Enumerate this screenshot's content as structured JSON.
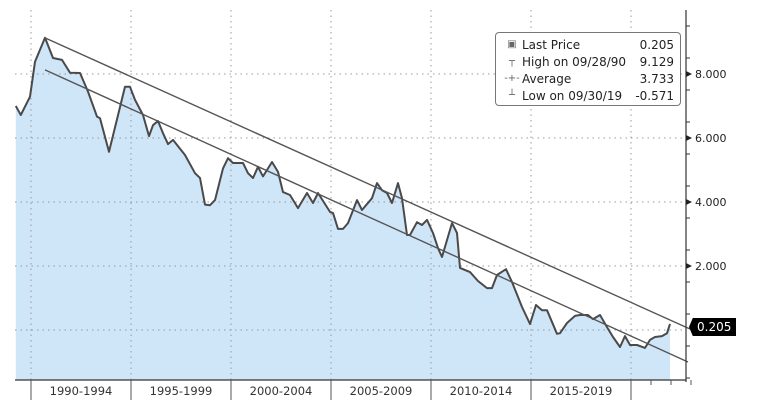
{
  "chart_data": {
    "type": "area",
    "title": "",
    "xlabel": "",
    "ylabel": "",
    "xlim": [
      1989.2,
      2023.0
    ],
    "ylim": [
      -1.56,
      10.0
    ],
    "grid": true,
    "x_tick_labels": [
      "1990-1994",
      "1995-1999",
      "2000-2004",
      "2005-2009",
      "2010-2014",
      "2015-2019"
    ],
    "x_tick_bounds": [
      1990,
      1995,
      2000,
      2005,
      2010,
      2015,
      2020
    ],
    "y_ticks": [
      2,
      4,
      6,
      8
    ],
    "y_tick_labels": [
      "2.000",
      "4.000",
      "6.000",
      "8.000"
    ],
    "legend_placement": "top-right",
    "legend": [
      {
        "name": "Last Price",
        "value": "0.205",
        "icon": "filled-square"
      },
      {
        "name": "High on 09/28/90",
        "value": "9.129",
        "icon": "high-marker"
      },
      {
        "name": "Average",
        "value": "3.733",
        "icon": "average-marker"
      },
      {
        "name": "Low on 09/30/19",
        "value": "-0.571",
        "icon": "low-marker"
      }
    ],
    "last_price_label": "0.205",
    "series": [
      {
        "name": "Last Price",
        "x": [
          1989.24,
          1989.49,
          1989.95,
          1990.2,
          1990.7,
          1991.1,
          1991.55,
          1991.95,
          1992.45,
          1992.85,
          1993.3,
          1993.45,
          1993.9,
          1994.7,
          1994.95,
          1995.2,
          1995.6,
          1995.9,
          1996.1,
          1996.35,
          1996.6,
          1996.85,
          1997.1,
          1997.7,
          1998.2,
          1998.45,
          1998.7,
          1998.95,
          1999.2,
          1999.6,
          1999.85,
          2000.1,
          2000.6,
          2000.85,
          2001.1,
          2001.35,
          2001.6,
          2002.05,
          2002.35,
          2002.6,
          2002.95,
          2003.35,
          2003.8,
          2004.1,
          2004.35,
          2004.95,
          2005.1,
          2005.35,
          2005.6,
          2005.85,
          2006.3,
          2006.55,
          2007.05,
          2007.3,
          2007.55,
          2007.8,
          2008.05,
          2008.35,
          2008.55,
          2008.8,
          2008.95,
          2009.3,
          2009.55,
          2009.8,
          2010.1,
          2010.35,
          2010.55,
          2011.05,
          2011.3,
          2011.45,
          2011.95,
          2012.35,
          2012.8,
          2013.05,
          2013.3,
          2013.75,
          2014.05,
          2014.55,
          2014.95,
          2015.25,
          2015.55,
          2015.8,
          2016.3,
          2016.45,
          2016.8,
          2017.2,
          2017.45,
          2017.85,
          2018.1,
          2018.45,
          2018.8,
          2019.1,
          2019.45,
          2019.7,
          2019.95,
          2020.3,
          2020.7,
          2020.95,
          2021.2,
          2021.55,
          2021.8,
          2021.95
        ],
        "y": [
          7.0,
          6.72,
          7.29,
          8.38,
          9.13,
          8.5,
          8.44,
          8.04,
          8.03,
          7.45,
          6.67,
          6.62,
          5.57,
          7.6,
          7.6,
          7.19,
          6.72,
          6.06,
          6.4,
          6.53,
          6.15,
          5.81,
          5.94,
          5.47,
          4.9,
          4.75,
          3.92,
          3.9,
          4.06,
          5.05,
          5.37,
          5.22,
          5.22,
          4.9,
          4.75,
          5.1,
          4.8,
          5.25,
          4.94,
          4.31,
          4.22,
          3.81,
          4.28,
          3.97,
          4.28,
          3.69,
          3.66,
          3.16,
          3.16,
          3.34,
          4.06,
          3.75,
          4.12,
          4.59,
          4.37,
          4.28,
          3.97,
          4.59,
          4.12,
          2.97,
          2.97,
          3.37,
          3.28,
          3.44,
          3.03,
          2.56,
          2.28,
          3.34,
          3.03,
          1.94,
          1.81,
          1.53,
          1.31,
          1.31,
          1.72,
          1.9,
          1.5,
          0.72,
          0.19,
          0.78,
          0.62,
          0.62,
          -0.12,
          -0.1,
          0.22,
          0.44,
          0.47,
          0.47,
          0.34,
          0.47,
          0.09,
          -0.22,
          -0.53,
          -0.19,
          -0.47,
          -0.47,
          -0.56,
          -0.31,
          -0.22,
          -0.19,
          -0.1,
          0.19
        ]
      }
    ],
    "trend_lines": [
      {
        "name": "upper-trend",
        "x": [
          1990.7,
          2022.95
        ],
        "y": [
          9.13,
          0.03
        ]
      },
      {
        "name": "lower-trend",
        "x": [
          1990.7,
          2022.85
        ],
        "y": [
          8.13,
          -1.0
        ]
      }
    ],
    "colors": {
      "fill": "#cfe5f8",
      "line": "#4a4a4a",
      "trend": "#555555",
      "grid": "#999999"
    }
  }
}
